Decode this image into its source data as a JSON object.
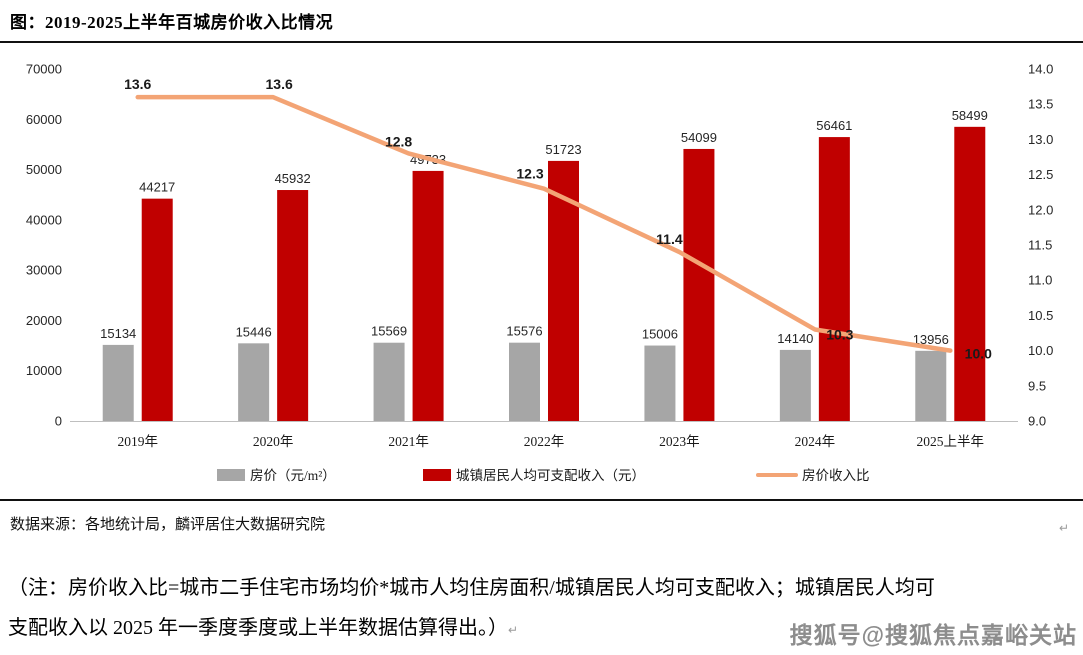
{
  "page": {
    "title": "图：2019-2025上半年百城房价收入比情况"
  },
  "chart_data": {
    "type": "bar",
    "title": "2019-2025上半年百城房价收入比情况",
    "categories": [
      "2019年",
      "2020年",
      "2021年",
      "2022年",
      "2023年",
      "2024年",
      "2025上半年"
    ],
    "series": [
      {
        "name": "房价（元/m²）",
        "type": "bar",
        "axis": "left",
        "color": "#A6A6A6",
        "values": [
          15134,
          15446,
          15569,
          15576,
          15006,
          14140,
          13956
        ]
      },
      {
        "name": "城镇居民人均可支配收入（元）",
        "type": "bar",
        "axis": "left",
        "color": "#C00000",
        "values": [
          44217,
          45932,
          49733,
          51723,
          54099,
          56461,
          58499
        ]
      },
      {
        "name": "房价收入比",
        "type": "line",
        "axis": "right",
        "color": "#F3A475",
        "values": [
          13.6,
          13.6,
          12.8,
          12.3,
          11.4,
          10.3,
          10.0
        ]
      }
    ],
    "left_axis": {
      "min": 0,
      "max": 70000,
      "step": 10000
    },
    "right_axis": {
      "min": 9.0,
      "max": 14.0,
      "step": 0.5
    },
    "grid": false,
    "legend_position": "bottom",
    "axis_line_color": "#BFBFBF",
    "label_color": "#262626"
  },
  "source": {
    "text": "数据来源：各地统计局，麟评居住大数据研究院",
    "mark": "↵"
  },
  "note": {
    "line1": "（注：房价收入比=城市二手住宅市场均价*城市人均住房面积/城镇居民人均可支配收入；城镇居民人均可",
    "line2": "支配收入以 2025 年一季度季度或上半年数据估算得出。）",
    "mark": "↵"
  },
  "watermark": {
    "text": "搜狐号@搜狐焦点嘉峪关站"
  }
}
